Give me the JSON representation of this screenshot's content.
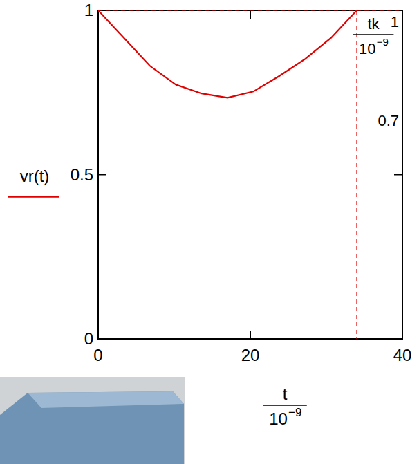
{
  "chart_data": {
    "type": "line",
    "x_label": {
      "numerator": "t",
      "denominator": "10",
      "exponent": "−9"
    },
    "x": [
      0,
      3.4,
      6.8,
      10.2,
      13.6,
      17,
      20.4,
      23.8,
      27.2,
      30.6,
      34
    ],
    "series": [
      {
        "name": "vr(t)",
        "color": "#e00000",
        "line_style": "solid",
        "values": [
          1,
          0.916,
          0.831,
          0.774,
          0.747,
          0.734,
          0.753,
          0.8,
          0.852,
          0.916,
          1
        ]
      }
    ],
    "xlim": [
      0,
      40
    ],
    "ylim": [
      0,
      1
    ],
    "xticks": [
      0,
      20,
      40
    ],
    "yticks": [
      0,
      0.5,
      1
    ],
    "grid": false,
    "legend": "left",
    "markers": [
      {
        "axis": "y",
        "value": 1,
        "label": "1",
        "color": "#e00000",
        "line_style": "dashed"
      },
      {
        "axis": "y",
        "value": 0.7,
        "label": "0.7",
        "color": "#e00000",
        "line_style": "dashed"
      },
      {
        "axis": "x",
        "value": 34,
        "label": {
          "numerator": "tk",
          "denominator": "10",
          "exponent": "−9"
        },
        "color": "#e00000",
        "line_style": "dashed"
      }
    ]
  }
}
